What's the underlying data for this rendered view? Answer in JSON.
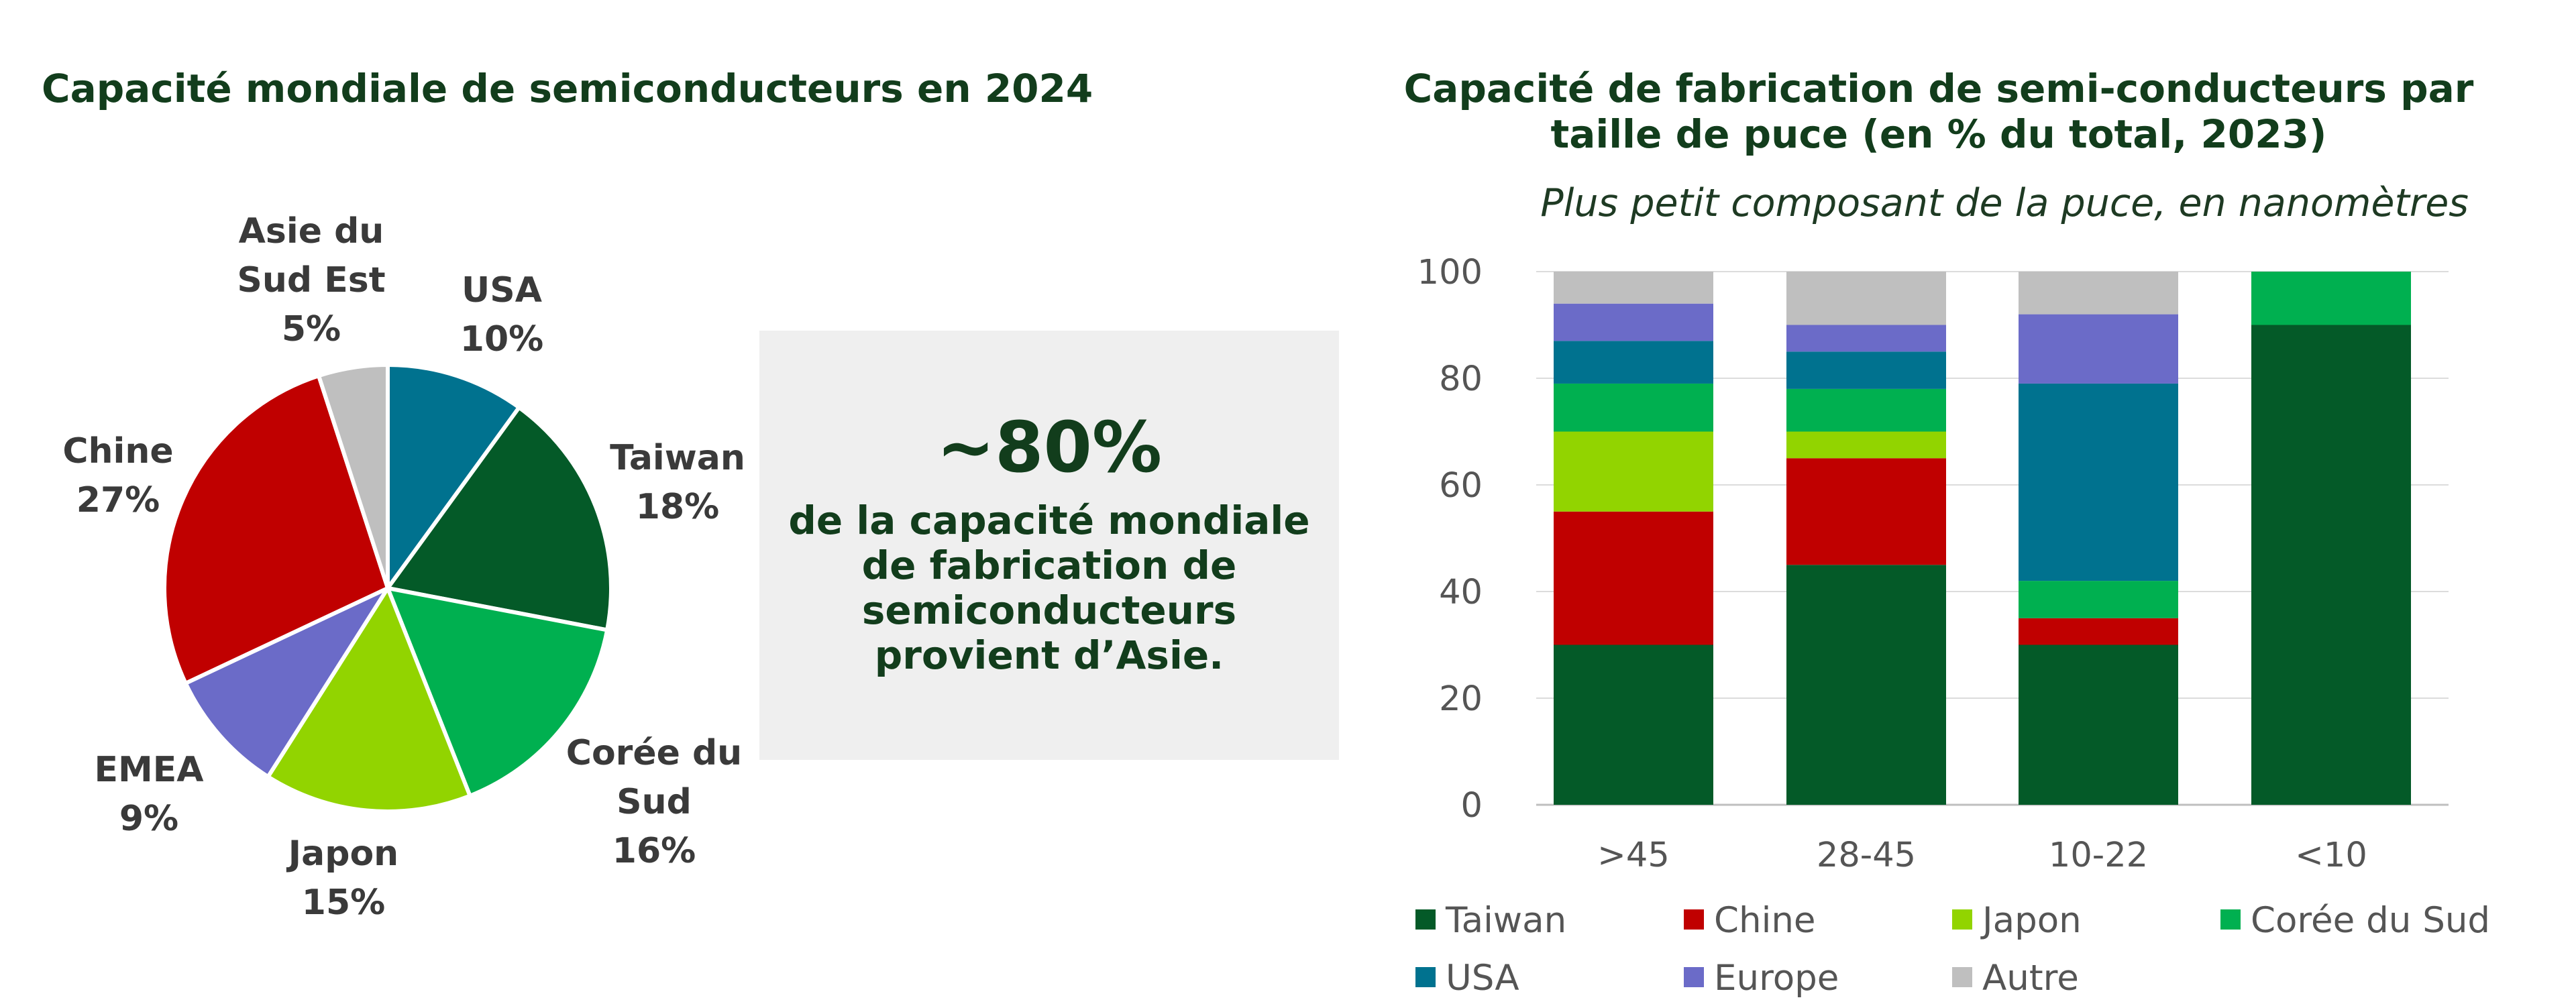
{
  "pie_chart": {
    "title": "Capacité mondiale de semiconducteurs en 2024"
  },
  "callout": {
    "headline": "~80%",
    "text": "de la capacité mondiale de fabrication de semiconducteurs provient d’Asie."
  },
  "bar_chart": {
    "title": "Capacité de fabrication de semi-conducteurs par taille de puce (en % du total, 2023)",
    "subtitle": "Plus petit composant de la puce, en nanomètres"
  },
  "chart_data": [
    {
      "type": "pie",
      "title": "Capacité mondiale de semiconducteurs en 2024",
      "start_angle": "12 o'clock, clockwise",
      "slices": [
        {
          "label": [
            "USA"
          ],
          "pct_label": "10%",
          "value": 10,
          "color": "#00728f"
        },
        {
          "label": [
            "Taiwan"
          ],
          "pct_label": "18%",
          "value": 18,
          "color": "#045a28"
        },
        {
          "label": [
            "Corée du",
            "Sud"
          ],
          "pct_label": "16%",
          "value": 16,
          "color": "#00b050"
        },
        {
          "label": [
            "Japon"
          ],
          "pct_label": "15%",
          "value": 15,
          "color": "#92d400"
        },
        {
          "label": [
            "EMEA"
          ],
          "pct_label": "9%",
          "value": 9,
          "color": "#6b6bc8"
        },
        {
          "label": [
            "Chine"
          ],
          "pct_label": "27%",
          "value": 27,
          "color": "#c00000"
        },
        {
          "label": [
            "Asie du",
            "Sud Est"
          ],
          "pct_label": "5%",
          "value": 5,
          "color": "#bfbfbf"
        }
      ]
    },
    {
      "type": "bar",
      "stacked": true,
      "title": "Capacité de fabrication de semi-conducteurs par taille de puce (en % du total, 2023)",
      "subtitle": "Plus petit composant de la puce, en nanomètres",
      "categories": [
        ">45",
        "28-45",
        "10-22",
        "<10"
      ],
      "ylim": [
        0,
        100
      ],
      "yticks": [
        0,
        20,
        40,
        60,
        80,
        100
      ],
      "grid": true,
      "legend_position": "bottom",
      "series": [
        {
          "name": "Taiwan",
          "color": "#045a28",
          "values": [
            30,
            45,
            30,
            90
          ]
        },
        {
          "name": "Chine",
          "color": "#c00000",
          "values": [
            25,
            20,
            5,
            0
          ]
        },
        {
          "name": "Japon",
          "color": "#92d400",
          "values": [
            15,
            5,
            0,
            0
          ]
        },
        {
          "name": "Corée du Sud",
          "color": "#00b050",
          "values": [
            9,
            8,
            7,
            10
          ]
        },
        {
          "name": "USA",
          "color": "#00728f",
          "values": [
            8,
            7,
            37,
            0
          ]
        },
        {
          "name": "Europe",
          "color": "#6b6bc8",
          "values": [
            7,
            5,
            13,
            0
          ]
        },
        {
          "name": "Autre",
          "color": "#bfbfbf",
          "values": [
            6,
            10,
            8,
            0
          ]
        }
      ]
    }
  ]
}
